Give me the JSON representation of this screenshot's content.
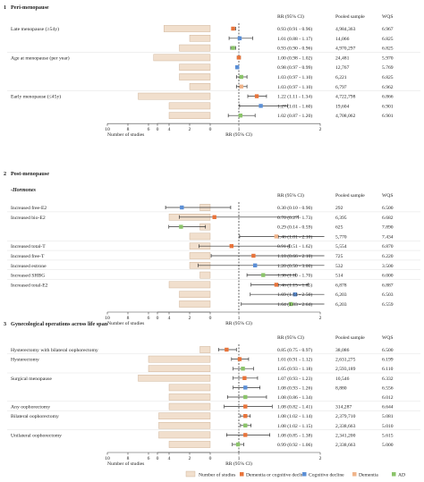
{
  "colors": {
    "bar_fill": "#f1dfcd",
    "bar_stroke": "#c9a98a",
    "dementia_or_cognitive_decline": "#e8743b",
    "cognitive_decline": "#5b8fd6",
    "dementia": "#f0b48a",
    "ad": "#8bc46a",
    "axis": "#444444",
    "ref_line": "#222222"
  },
  "legend": {
    "bar_label": "Number of studies",
    "items": [
      {
        "name": "Dementia or cognitive decline",
        "color_key": "dementia_or_cognitive_decline"
      },
      {
        "name": "Cognitive decline",
        "color_key": "cognitive_decline"
      },
      {
        "name": "Dementia",
        "color_key": "dementia"
      },
      {
        "name": "AD",
        "color_key": "ad"
      }
    ]
  },
  "chart_data": [
    {
      "type": "forest",
      "panel_label": "1",
      "title": "Peri-menopause",
      "subtitle": "",
      "column_headers": {
        "rr": "RR (95% CI)",
        "sample": "Pooled sample",
        "wqs": "WQS"
      },
      "bar_axis": {
        "label": "Number of studies",
        "ticks": [
          "10",
          "8",
          "6",
          "4",
          "2",
          "0"
        ],
        "range": [
          10,
          0
        ]
      },
      "rr_axis": {
        "label": "RR (95% CI)",
        "ticks": [
          "0",
          "1",
          "2"
        ],
        "range": [
          0,
          2
        ],
        "ref": 1
      },
      "rows": [
        {
          "label": "Late menopause (≥54y)",
          "studies": 4.5,
          "series": "dementia_or_cognitive_decline",
          "rr": 0.93,
          "lo": 0.91,
          "hi": 0.96,
          "rr_text": "0.93 (0.91 - 0.96)",
          "sample": "4,984,363",
          "wqs": "6.967"
        },
        {
          "label": "",
          "studies": 2,
          "series": "cognitive_decline",
          "rr": 1.01,
          "lo": 0.88,
          "hi": 1.17,
          "rr_text": "1.01 (0.88 - 1.17)",
          "sample": "14,066",
          "wqs": "6.825"
        },
        {
          "label": "",
          "studies": 3,
          "series": "ad",
          "rr": 0.93,
          "lo": 0.9,
          "hi": 0.96,
          "rr_text": "0.93 (0.90 - 0.96)",
          "sample": "4,970,297",
          "wqs": "6.825"
        },
        {
          "label": "Age at menopause (per year)",
          "studies": 5.5,
          "series": "dementia_or_cognitive_decline",
          "rr": 1.0,
          "lo": 0.98,
          "hi": 1.02,
          "rr_text": "1.00 (0.98 - 1.02)",
          "sample": "24,481",
          "wqs": "5.970"
        },
        {
          "label": "",
          "studies": 3,
          "series": "cognitive_decline",
          "rr": 0.98,
          "lo": 0.97,
          "hi": 0.99,
          "rr_text": "0.98 (0.97 - 0.99)",
          "sample": "12,767",
          "wqs": "5.769"
        },
        {
          "label": "",
          "studies": 3,
          "series": "ad",
          "rr": 1.03,
          "lo": 0.97,
          "hi": 1.1,
          "rr_text": "1.03 (0.97 - 1.10)",
          "sample": "6,221",
          "wqs": "6.825"
        },
        {
          "label": "",
          "studies": 2,
          "series": "dementia",
          "rr": 1.03,
          "lo": 0.97,
          "hi": 1.1,
          "rr_text": "1.03 (0.97 - 1.10)",
          "sample": "6,797",
          "wqs": "6.962"
        },
        {
          "label": "Early menopause (≤45y)",
          "studies": 7,
          "series": "dementia_or_cognitive_decline",
          "rr": 1.22,
          "lo": 1.11,
          "hi": 1.34,
          "rr_text": "1.22 (1.11 - 1.34)",
          "sample": "4,722,798",
          "wqs": "6.866"
        },
        {
          "label": "",
          "studies": 4,
          "series": "cognitive_decline",
          "rr": 1.27,
          "lo": 1.01,
          "hi": 1.6,
          "rr_text": "1.27 (1.01 - 1.60)",
          "sample": "19,604",
          "wqs": "6.901"
        },
        {
          "label": "",
          "studies": 4,
          "series": "ad",
          "rr": 1.02,
          "lo": 0.87,
          "hi": 1.2,
          "rr_text": "1.02 (0.87 - 1.20)",
          "sample": "4,708,062",
          "wqs": "6.901"
        }
      ]
    },
    {
      "type": "forest",
      "panel_label": "2",
      "title": "Post-menopause",
      "subtitle": "-Hormones",
      "column_headers": {
        "rr": "RR (95% CI)",
        "sample": "Pooled sample",
        "wqs": "WQS"
      },
      "bar_axis": {
        "label": "Number of studies",
        "ticks": [
          "10",
          "8",
          "6",
          "4",
          "2",
          "0"
        ],
        "range": [
          10,
          0
        ]
      },
      "rr_axis": {
        "label": "RR (95% CI)",
        "ticks": [
          "0",
          "1",
          "2"
        ],
        "range": [
          0,
          2
        ],
        "ref": 1
      },
      "rows": [
        {
          "label": "Increased free-E2",
          "studies": 1,
          "series": "cognitive_decline",
          "rr": 0.3,
          "lo": 0.1,
          "hi": 0.9,
          "rr_text": "0.30 (0.10 - 0.90)",
          "sample": "292",
          "wqs": "6.500"
        },
        {
          "label": "Increased bio-E2",
          "studies": 4,
          "series": "dementia_or_cognitive_decline",
          "rr": 0.7,
          "lo": 0.27,
          "hi": 1.73,
          "rr_text": "0.70 (0.27 - 1.73)",
          "sample": "6,395",
          "wqs": "6.682"
        },
        {
          "label": "",
          "studies": 1,
          "series": "ad",
          "rr": 0.29,
          "lo": 0.14,
          "hi": 0.59,
          "rr_text": "0.29 (0.14 - 0.59)",
          "sample": "625",
          "wqs": "7.890"
        },
        {
          "label": "",
          "studies": 2,
          "series": "dementia",
          "rr": 1.46,
          "lo": 1.01,
          "hi": 2.1,
          "rr_text": "1.46 (1.01 - 2.10)",
          "sample": "5,770",
          "wqs": "7.434"
        },
        {
          "label": "Increased total-T",
          "studies": 2,
          "series": "dementia_or_cognitive_decline",
          "rr": 0.91,
          "lo": 0.51,
          "hi": 1.62,
          "rr_text": "0.91 (0.51 - 1.62)",
          "sample": "5,554",
          "wqs": "6.870"
        },
        {
          "label": "Increased free-T",
          "studies": 2,
          "series": "dementia_or_cognitive_decline",
          "rr": 1.18,
          "lo": 0.66,
          "hi": 2.1,
          "rr_text": "1.18 (0.66 - 2.10)",
          "sample": "725",
          "wqs": "6.220"
        },
        {
          "label": "Increased estrone",
          "studies": 2,
          "series": "cognitive_decline",
          "rr": 1.2,
          "lo": 0.5,
          "hi": 3.0,
          "rr_text": "1.20 (0.50 - 3.00)",
          "sample": "532",
          "wqs": "3.500"
        },
        {
          "label": "Increased SHBG",
          "studies": 1,
          "series": "ad",
          "rr": 1.3,
          "lo": 1.1,
          "hi": 1.7,
          "rr_text": "1.30 (1.10 - 1.70)",
          "sample": "514",
          "wqs": "6.000"
        },
        {
          "label": "Increased total-E2",
          "studies": 4,
          "series": "dementia_or_cognitive_decline",
          "rr": 1.46,
          "lo": 1.15,
          "hi": 1.85,
          "rr_text": "1.46 (1.15 - 1.85)",
          "sample": "6,878",
          "wqs": "6.887"
        },
        {
          "label": "",
          "studies": 3,
          "series": "cognitive_decline",
          "rr": 1.69,
          "lo": 1.14,
          "hi": 2.5,
          "rr_text": "1.69 (1.14 - 2.50)",
          "sample": "6,203",
          "wqs": "6.503"
        },
        {
          "label": "",
          "studies": 3,
          "series": "ad",
          "rr": 1.64,
          "lo": 1.03,
          "hi": 2.64,
          "rr_text": "1.64 (1.03 - 2.64)",
          "sample": "6,203",
          "wqs": "6.559"
        }
      ]
    },
    {
      "type": "forest",
      "panel_label": "3",
      "title": "Gynecological operations across life span",
      "subtitle": "",
      "column_headers": {
        "rr": "RR (95% CI)",
        "sample": "Pooled sample",
        "wqs": "WQS"
      },
      "bar_axis": {
        "label": "Number of studies",
        "ticks": [
          "10",
          "8",
          "6",
          "4",
          "2",
          "0"
        ],
        "range": [
          10,
          0
        ]
      },
      "rr_axis": {
        "label": "RR (95% CI)",
        "ticks": [
          "0",
          "1",
          "2"
        ],
        "range": [
          0,
          2
        ],
        "ref": 1
      },
      "rows": [
        {
          "label": "Hysterectomy with bilateral oophorectomy",
          "studies": 1,
          "series": "dementia_or_cognitive_decline",
          "rr": 0.85,
          "lo": 0.75,
          "hi": 0.97,
          "rr_text": "0.85 (0.75 - 0.97)",
          "sample": "38,086",
          "wqs": "6.500"
        },
        {
          "label": "Hysterectomy",
          "studies": 6,
          "series": "dementia_or_cognitive_decline",
          "rr": 1.01,
          "lo": 0.91,
          "hi": 1.12,
          "rr_text": "1.01 (0.91 - 1.12)",
          "sample": "2,631,275",
          "wqs": "6.199"
        },
        {
          "label": "",
          "studies": 6,
          "series": "ad",
          "rr": 1.05,
          "lo": 0.93,
          "hi": 1.18,
          "rr_text": "1.05 (0.93 - 1.18)",
          "sample": "2,593,189",
          "wqs": "6.110"
        },
        {
          "label": "Surgical menopause",
          "studies": 7,
          "series": "dementia_or_cognitive_decline",
          "rr": 1.07,
          "sample": "10,546",
          "lo": 0.93,
          "hi": 1.23,
          "rr_text": "1.07 (0.93 - 1.23)",
          "wqs": "6.332"
        },
        {
          "label": "",
          "studies": 4,
          "series": "cognitive_decline",
          "rr": 1.08,
          "lo": 0.93,
          "hi": 1.26,
          "rr_text": "1.08 (0.93 - 1.26)",
          "sample": "8,880",
          "wqs": "6.556"
        },
        {
          "label": "",
          "studies": 4,
          "series": "ad",
          "rr": 1.08,
          "lo": 0.86,
          "hi": 1.34,
          "rr_text": "1.08 (0.86 - 1.34)",
          "sample": "",
          "wqs": "6.012"
        },
        {
          "label": "Any oophorectomy",
          "studies": 4,
          "series": "dementia_or_cognitive_decline",
          "rr": 1.08,
          "lo": 0.82,
          "hi": 1.41,
          "rr_text": "1.08 (0.82 - 1.41)",
          "sample": "314,287",
          "wqs": "6.644"
        },
        {
          "label": "Bilateral oophorectomy",
          "studies": 5,
          "series": "dementia_or_cognitive_decline",
          "rr": 1.08,
          "lo": 1.02,
          "hi": 1.14,
          "rr_text": "1.08 (1.02 - 1.14)",
          "sample": "2,379,710",
          "wqs": "5.081"
        },
        {
          "label": "",
          "studies": 5,
          "series": "ad",
          "rr": 1.08,
          "lo": 1.02,
          "hi": 1.15,
          "rr_text": "1.08 (1.02 - 1.15)",
          "sample": "2,338,663",
          "wqs": "5.010"
        },
        {
          "label": "Unilateral oophorectomy",
          "studies": 5,
          "series": "dementia_or_cognitive_decline",
          "rr": 1.08,
          "lo": 0.85,
          "hi": 1.38,
          "rr_text": "1.08 (0.85 - 1.38)",
          "sample": "2,341,200",
          "wqs": "5.615"
        },
        {
          "label": "",
          "studies": 4,
          "series": "ad",
          "rr": 0.99,
          "lo": 0.92,
          "hi": 1.06,
          "rr_text": "0.99 (0.92 - 1.06)",
          "sample": "2,338,663",
          "wqs": "5.000"
        }
      ]
    }
  ]
}
